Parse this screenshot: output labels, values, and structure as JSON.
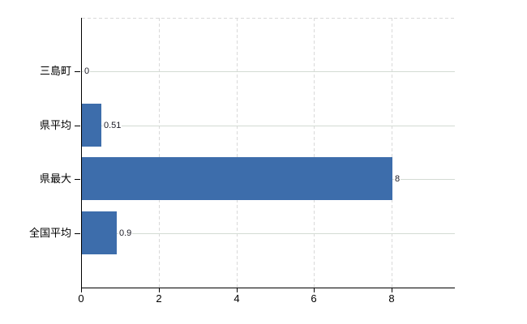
{
  "chart_data": {
    "type": "bar",
    "orientation": "horizontal",
    "title": "",
    "categories": [
      "三島町",
      "県平均",
      "県最大",
      "全国平均"
    ],
    "values": [
      0,
      0.51,
      8,
      0.9
    ],
    "value_labels": [
      "0",
      "0.51",
      "8",
      "0.9"
    ],
    "x_tick_labels": [
      "0",
      "2",
      "4",
      "6",
      "8"
    ],
    "x_tick_values": [
      0,
      2,
      4,
      6,
      8
    ],
    "xlim": [
      0,
      9.6
    ],
    "ylabel": "",
    "xlabel": "",
    "grid": "on",
    "legend": "none",
    "colors": {
      "bar": "#3d6dab",
      "axis": "#000000",
      "h_gridline": "#d3dbd3",
      "v_gridline": "#d9d9d9",
      "value_label": "#1c1c26",
      "tick_label": "#000000",
      "background": "#ffffff"
    }
  }
}
